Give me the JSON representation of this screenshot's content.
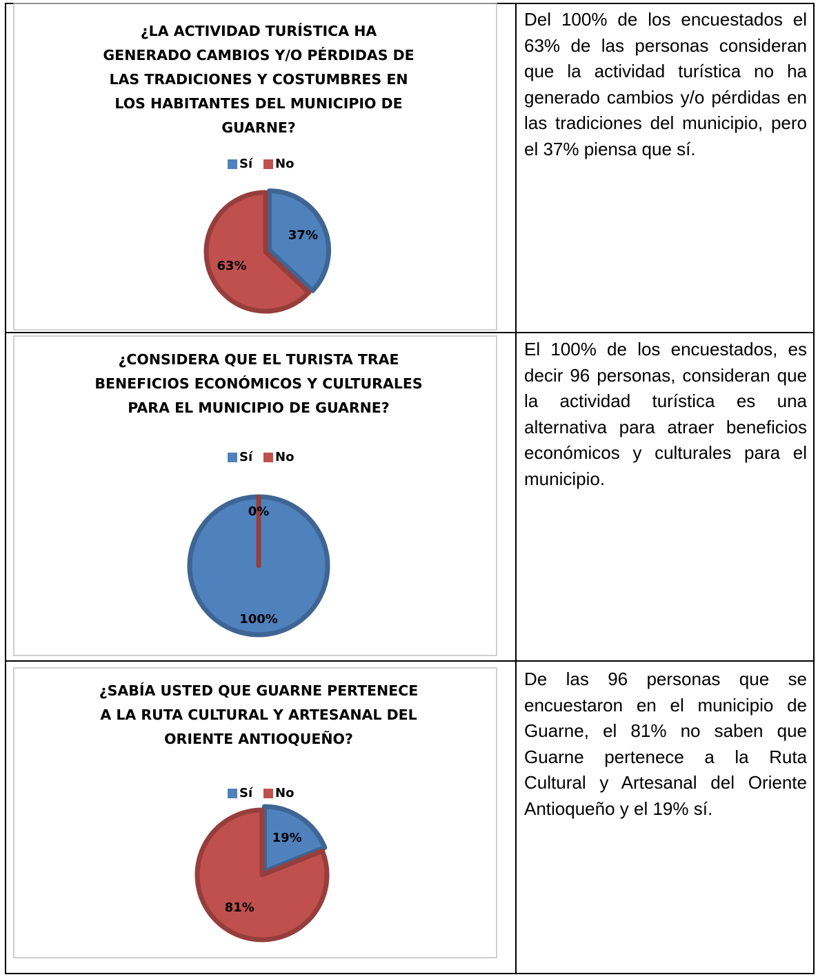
{
  "rows": [
    {
      "chart": {
        "type": "pie",
        "title": [
          "¿LA ACTIVIDAD TURÍSTICA HA",
          "GENERADO CAMBIOS Y/O PÉRDIDAS DE",
          "LAS TRADICIONES Y COSTUMBRES EN",
          "LOS HABITANTES DEL MUNICIPIO DE",
          "GUARNE?"
        ],
        "categories": [
          "Sí",
          "No"
        ],
        "values": [
          37,
          63
        ],
        "value_labels": [
          "37%",
          "63%"
        ],
        "colors": [
          "#4f81bd",
          "#c0504d"
        ]
      },
      "text": "Del 100% de los encuestados el 63% de las personas consideran que la actividad turística no ha generado cambios y/o pérdidas en las tradiciones del municipio, pero el 37% piensa que sí."
    },
    {
      "chart": {
        "type": "pie",
        "title": [
          "¿CONSIDERA QUE EL TURISTA TRAE",
          "BENEFICIOS ECONÓMICOS Y CULTURALES",
          "PARA EL MUNICIPIO DE GUARNE?"
        ],
        "categories": [
          "Sí",
          "No"
        ],
        "values": [
          100,
          0
        ],
        "value_labels": [
          "100%",
          "0%"
        ],
        "colors": [
          "#4f81bd",
          "#c0504d"
        ]
      },
      "text": "El 100% de los encuestados, es decir 96 personas, consideran que la actividad turística es una alternativa para atraer beneficios económicos y culturales para el municipio."
    },
    {
      "chart": {
        "type": "pie",
        "title": [
          "¿SABÍA USTED QUE GUARNE PERTENECE",
          "A LA RUTA CULTURAL Y ARTESANAL DEL",
          "ORIENTE ANTIOQUEÑO?"
        ],
        "categories": [
          "Sí",
          "No"
        ],
        "values": [
          19,
          81
        ],
        "value_labels": [
          "19%",
          "81%"
        ],
        "colors": [
          "#4f81bd",
          "#c0504d"
        ]
      },
      "text": "De las 96 personas que se encuestaron en el municipio de Guarne, el 81% no saben que Guarne pertenece a la Ruta Cultural y Artesanal del Oriente Antioqueño y el 19% sí."
    }
  ]
}
